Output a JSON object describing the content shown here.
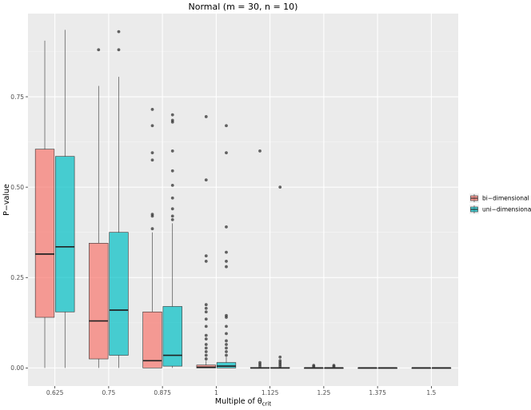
{
  "chart_data": {
    "type": "boxplot",
    "title": "Normal (m = 30, n = 10)",
    "xlabel_main": "Multiple of θ",
    "xlabel_sub": "crit",
    "ylabel": "P−value",
    "ylim": [
      -0.05,
      0.98
    ],
    "y_ticks": [
      0.0,
      0.25,
      0.5,
      0.75
    ],
    "y_tick_labels": [
      "0.00",
      "0.25",
      "0.50",
      "0.75"
    ],
    "categories": [
      "0.625",
      "0.75",
      "0.875",
      "1",
      "1.125",
      "1.25",
      "1.375",
      "1.5"
    ],
    "series": [
      {
        "name": "bi−dimensional",
        "color": "#F8766D",
        "boxes": [
          {
            "min": 0.0,
            "q1": 0.14,
            "median": 0.315,
            "q3": 0.605,
            "max": 0.905,
            "outliers": []
          },
          {
            "min": 0.0,
            "q1": 0.025,
            "median": 0.13,
            "q3": 0.345,
            "max": 0.78,
            "outliers": [
              0.88
            ]
          },
          {
            "min": 0.0,
            "q1": 0.0,
            "median": 0.02,
            "q3": 0.155,
            "max": 0.375,
            "outliers": [
              0.385,
              0.42,
              0.425,
              0.575,
              0.595,
              0.67,
              0.715
            ]
          },
          {
            "min": 0.0,
            "q1": 0.0,
            "median": 0.002,
            "q3": 0.008,
            "max": 0.02,
            "outliers": [
              0.025,
              0.035,
              0.045,
              0.055,
              0.065,
              0.08,
              0.09,
              0.115,
              0.135,
              0.155,
              0.165,
              0.175,
              0.295,
              0.31,
              0.52,
              0.695
            ]
          },
          {
            "min": 0.0,
            "q1": 0.0,
            "median": 0.0,
            "q3": 0.001,
            "max": 0.002,
            "outliers": [
              0.005,
              0.01,
              0.015,
              0.6
            ]
          },
          {
            "min": 0.0,
            "q1": 0.0,
            "median": 0.0,
            "q3": 0.0,
            "max": 0.001,
            "outliers": [
              0.004,
              0.007
            ]
          },
          {
            "min": 0.0,
            "q1": 0.0,
            "median": 0.0,
            "q3": 0.0,
            "max": 0.0,
            "outliers": []
          },
          {
            "min": 0.0,
            "q1": 0.0,
            "median": 0.0,
            "q3": 0.0,
            "max": 0.0,
            "outliers": []
          }
        ]
      },
      {
        "name": "uni−dimensional",
        "color": "#00BFC4",
        "boxes": [
          {
            "min": 0.0,
            "q1": 0.155,
            "median": 0.335,
            "q3": 0.585,
            "max": 0.935,
            "outliers": []
          },
          {
            "min": 0.0,
            "q1": 0.035,
            "median": 0.16,
            "q3": 0.375,
            "max": 0.805,
            "outliers": [
              0.88,
              0.93
            ]
          },
          {
            "min": 0.0,
            "q1": 0.005,
            "median": 0.035,
            "q3": 0.17,
            "max": 0.4,
            "outliers": [
              0.41,
              0.42,
              0.44,
              0.47,
              0.505,
              0.545,
              0.6,
              0.68,
              0.685,
              0.7
            ]
          },
          {
            "min": 0.0,
            "q1": 0.0,
            "median": 0.005,
            "q3": 0.015,
            "max": 0.03,
            "outliers": [
              0.035,
              0.045,
              0.055,
              0.065,
              0.075,
              0.095,
              0.115,
              0.14,
              0.145,
              0.28,
              0.295,
              0.32,
              0.39,
              0.595,
              0.67
            ]
          },
          {
            "min": 0.0,
            "q1": 0.0,
            "median": 0.0,
            "q3": 0.001,
            "max": 0.003,
            "outliers": [
              0.005,
              0.01,
              0.015,
              0.02,
              0.03,
              0.5
            ]
          },
          {
            "min": 0.0,
            "q1": 0.0,
            "median": 0.0,
            "q3": 0.0,
            "max": 0.001,
            "outliers": [
              0.004,
              0.007
            ]
          },
          {
            "min": 0.0,
            "q1": 0.0,
            "median": 0.0,
            "q3": 0.0,
            "max": 0.0,
            "outliers": []
          },
          {
            "min": 0.0,
            "q1": 0.0,
            "median": 0.0,
            "q3": 0.0,
            "max": 0.0,
            "outliers": []
          }
        ]
      }
    ],
    "grid": true,
    "legend_position": "right"
  }
}
